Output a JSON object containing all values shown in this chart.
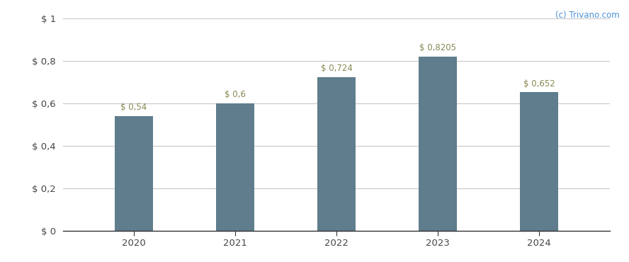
{
  "categories": [
    "2020",
    "2021",
    "2022",
    "2023",
    "2024"
  ],
  "values": [
    0.54,
    0.6,
    0.724,
    0.8205,
    0.652
  ],
  "labels": [
    "$ 0,54",
    "$ 0,6",
    "$ 0,724",
    "$ 0,8205",
    "$ 0,652"
  ],
  "bar_color": "#5f7d8c",
  "ylim": [
    0,
    1.0
  ],
  "yticks": [
    0,
    0.2,
    0.4,
    0.6,
    0.8,
    1.0
  ],
  "ytick_labels": [
    "$ 0",
    "$ 0,2",
    "$ 0,4",
    "$ 0,6",
    "$ 0,8",
    "$ 1"
  ],
  "background_color": "#ffffff",
  "grid_color": "#c8c8c8",
  "label_fontsize": 8.5,
  "tick_fontsize": 9.5,
  "watermark": "(c) Trivano.com",
  "bar_width": 0.38
}
